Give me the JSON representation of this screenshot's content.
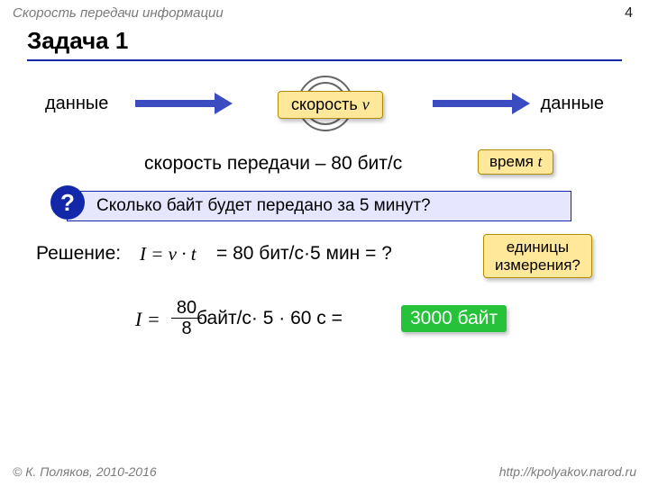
{
  "topic": "Скорость передачи информации",
  "page": "4",
  "title": "Задача 1",
  "data_label": "данные",
  "speed_label_prefix": "скорость ",
  "speed_var": "v",
  "rate_line": "скорость передачи – 80 бит/с",
  "time_label_prefix": "время ",
  "time_var": "t",
  "question_mark": "?",
  "question_text": "Сколько байт будет передано за 5 минут?",
  "solution_label": "Решение:",
  "formula1": "I = v · t",
  "eq1_text": "= 80 бит/с·5 мин = ?",
  "units_label_l1": "единицы",
  "units_label_l2": "измерения?",
  "I_eq": "I =",
  "frac_num": "80",
  "frac_den": "8",
  "after_frac": "байт/с· 5 · 60 с =",
  "answer": "3000 байт",
  "footer_left": "© К. Поляков, 2010-2016",
  "footer_right": "http://kpolyakov.narod.ru",
  "colors": {
    "rule": "#1228a8",
    "arrow": "#3b4cc0",
    "badge_bg": "#ffe89a",
    "badge_border": "#b08b00",
    "answer_bg": "#25c23a",
    "qbox_bg": "#e6e6ff",
    "qcircle_bg": "#1228a8"
  }
}
